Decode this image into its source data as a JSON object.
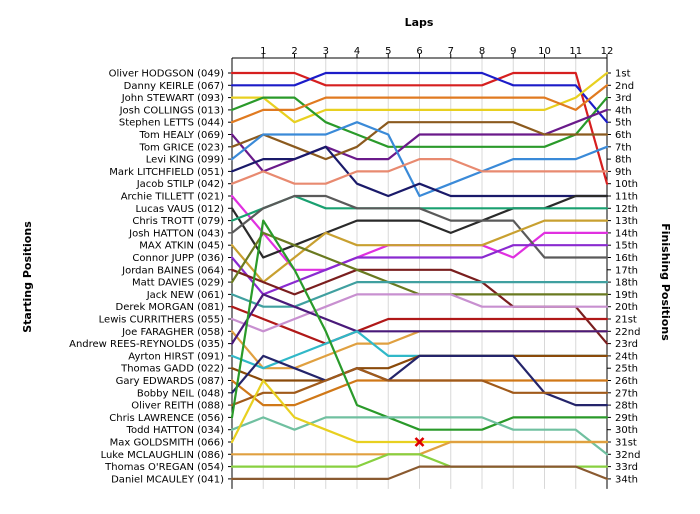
{
  "chart_data": {
    "type": "line",
    "title": "Laps",
    "ylabel_left": "Starting Positions",
    "ylabel_right": "Finishing Positions",
    "laps": [
      1,
      2,
      3,
      4,
      5,
      6,
      7,
      8,
      9,
      10,
      11,
      12
    ],
    "position_labels": [
      "1st",
      "2nd",
      "3rd",
      "4th",
      "5th",
      "6th",
      "7th",
      "8th",
      "9th",
      "10th",
      "11th",
      "12th",
      "13th",
      "14th",
      "15th",
      "16th",
      "17th",
      "18th",
      "19th",
      "20th",
      "21st",
      "22nd",
      "23rd",
      "24th",
      "25th",
      "26th",
      "27th",
      "28th",
      "29th",
      "30th",
      "31st",
      "32nd",
      "33rd",
      "34th"
    ],
    "annotation": {
      "type": "x-marker",
      "lap": 6,
      "position": 31,
      "color": "#dd0000"
    },
    "series": [
      {
        "name": "Oliver HODGSON (049)",
        "color": "#d61f1f",
        "positions": [
          1,
          1,
          1,
          2,
          2,
          2,
          2,
          2,
          2,
          1,
          1,
          1,
          10
        ]
      },
      {
        "name": "Danny KEIRLE (067)",
        "color": "#1c1cc8",
        "positions": [
          2,
          2,
          2,
          1,
          1,
          1,
          1,
          1,
          1,
          2,
          2,
          2,
          5
        ]
      },
      {
        "name": "John STEWART (093)",
        "color": "#e8d020",
        "positions": [
          3,
          3,
          5,
          4,
          4,
          4,
          4,
          4,
          4,
          4,
          4,
          3,
          1
        ]
      },
      {
        "name": "Josh COLLINGS (013)",
        "color": "#2a9a2a",
        "positions": [
          4,
          3,
          3,
          5,
          6,
          7,
          7,
          7,
          7,
          7,
          7,
          6,
          3
        ]
      },
      {
        "name": "Stephen LETTS (044)",
        "color": "#e07a20",
        "positions": [
          5,
          4,
          4,
          3,
          3,
          3,
          3,
          3,
          3,
          3,
          3,
          4,
          2
        ]
      },
      {
        "name": "Tom HEALY (069)",
        "color": "#6a1a8a",
        "positions": [
          6,
          9,
          8,
          7,
          8,
          8,
          6,
          6,
          6,
          6,
          6,
          5,
          4
        ]
      },
      {
        "name": "Tom GRICE (023)",
        "color": "#8b5a1e",
        "positions": [
          7,
          6,
          7,
          8,
          7,
          5,
          5,
          5,
          5,
          5,
          6,
          6,
          6
        ]
      },
      {
        "name": "Levi KING (099)",
        "color": "#3a8ad8",
        "positions": [
          8,
          6,
          6,
          6,
          5,
          6,
          11,
          10,
          9,
          8,
          8,
          8,
          7
        ]
      },
      {
        "name": "Mark LITCHFIELD (051)",
        "color": "#1a1a6a",
        "positions": [
          9,
          8,
          8,
          7,
          10,
          11,
          10,
          11,
          11,
          11,
          11,
          11,
          11
        ]
      },
      {
        "name": "Jacob STILP (042)",
        "color": "#e88a70",
        "positions": [
          10,
          9,
          10,
          10,
          9,
          9,
          8,
          8,
          9,
          9,
          9,
          9,
          9
        ]
      },
      {
        "name": "Archie TILLETT (021)",
        "color": "#e030e0",
        "positions": [
          11,
          14,
          17,
          17,
          16,
          15,
          15,
          15,
          15,
          16,
          14,
          14,
          14
        ]
      },
      {
        "name": "Lucas VAUS (012)",
        "color": "#2a2a2a",
        "positions": [
          12,
          16,
          15,
          14,
          13,
          13,
          13,
          14,
          13,
          12,
          12,
          11,
          11
        ]
      },
      {
        "name": "Chris TROTT (079)",
        "color": "#1aa070",
        "positions": [
          13,
          12,
          11,
          12,
          12,
          12,
          12,
          12,
          12,
          12,
          12,
          12,
          12
        ]
      },
      {
        "name": "Josh HATTON (043)",
        "color": "#5a5a5a",
        "positions": [
          14,
          12,
          11,
          11,
          12,
          12,
          12,
          13,
          13,
          13,
          16,
          16,
          16
        ]
      },
      {
        "name": "MAX ATKIN (045)",
        "color": "#c8a030",
        "positions": [
          15,
          18,
          16,
          14,
          15,
          15,
          15,
          15,
          15,
          14,
          13,
          13,
          13
        ]
      },
      {
        "name": "Connor JUPP (036)",
        "color": "#8a2ad0",
        "positions": [
          16,
          19,
          18,
          17,
          16,
          16,
          16,
          16,
          16,
          15,
          15,
          15,
          15
        ]
      },
      {
        "name": "Jordan BAINES (064)",
        "color": "#7a1e1e",
        "positions": [
          17,
          18,
          19,
          18,
          17,
          17,
          17,
          17,
          18,
          20,
          20,
          20,
          23
        ]
      },
      {
        "name": "Matt DAVIES (029)",
        "color": "#6a7a20",
        "positions": [
          18,
          14,
          15,
          16,
          17,
          18,
          19,
          19,
          19,
          19,
          19,
          19,
          19
        ]
      },
      {
        "name": "Jack NEW (061)",
        "color": "#40a0a0",
        "positions": [
          19,
          20,
          20,
          19,
          18,
          18,
          18,
          18,
          18,
          18,
          18,
          18,
          18
        ]
      },
      {
        "name": "Derek MORGAN (081)",
        "color": "#b01818",
        "positions": [
          20,
          21,
          22,
          23,
          22,
          21,
          21,
          21,
          21,
          21,
          21,
          21,
          21
        ]
      },
      {
        "name": "Lewis CURRITHERS (055)",
        "color": "#c890d0",
        "positions": [
          21,
          22,
          21,
          20,
          19,
          19,
          19,
          19,
          20,
          20,
          20,
          20,
          20
        ]
      },
      {
        "name": "Joe FARAGHER (058)",
        "color": "#e0a040",
        "positions": [
          22,
          25,
          25,
          24,
          23,
          23,
          22,
          22,
          22,
          22,
          22,
          22,
          22
        ]
      },
      {
        "name": "Andrew REES-REYNOLDS (035)",
        "color": "#4a1a7a",
        "positions": [
          23,
          19,
          20,
          21,
          22,
          22,
          22,
          22,
          22,
          22,
          22,
          22,
          22
        ]
      },
      {
        "name": "Ayrton HIRST (091)",
        "color": "#30b8c8",
        "positions": [
          24,
          25,
          24,
          23,
          22,
          24,
          24,
          24,
          24,
          24,
          24,
          24,
          24
        ]
      },
      {
        "name": "Thomas GADD (022)",
        "color": "#8a4a0a",
        "positions": [
          25,
          26,
          26,
          26,
          25,
          25,
          24,
          24,
          24,
          24,
          24,
          24,
          24
        ]
      },
      {
        "name": "Gary EDWARDS (087)",
        "color": "#d07818",
        "positions": [
          26,
          28,
          28,
          27,
          26,
          26,
          26,
          26,
          26,
          26,
          26,
          26,
          26
        ]
      },
      {
        "name": "Bobby NEIL (048)",
        "color": "#24246a",
        "positions": [
          27,
          24,
          25,
          26,
          25,
          26,
          24,
          24,
          24,
          24,
          27,
          28,
          28
        ]
      },
      {
        "name": "Oliver REITH (088)",
        "color": "#a05a1a",
        "positions": [
          28,
          27,
          27,
          26,
          25,
          26,
          26,
          26,
          26,
          27,
          27,
          27,
          27
        ]
      },
      {
        "name": "Chris LAWRENCE (056)",
        "color": "#2a9a2a",
        "positions": [
          29,
          13,
          17,
          22,
          28,
          29,
          30,
          30,
          30,
          29,
          29,
          29,
          29
        ]
      },
      {
        "name": "Todd HATTON (034)",
        "color": "#70c0a0",
        "positions": [
          30,
          29,
          30,
          29,
          29,
          29,
          29,
          29,
          29,
          30,
          30,
          30,
          32
        ]
      },
      {
        "name": "Max GOLDSMITH (066)",
        "color": "#e8d020",
        "positions": [
          31,
          26,
          29,
          30,
          31,
          31,
          31,
          31,
          31,
          31,
          31,
          31,
          31
        ]
      },
      {
        "name": "Luke MCLAUGHLIN (086)",
        "color": "#e0a040",
        "positions": [
          32,
          32,
          32,
          32,
          32,
          32,
          32,
          31,
          31,
          31,
          31,
          31,
          31
        ]
      },
      {
        "name": "Thomas O'REGAN (054)",
        "color": "#88d040",
        "positions": [
          33,
          33,
          33,
          33,
          33,
          32,
          32,
          33,
          33,
          33,
          33,
          33,
          33
        ]
      },
      {
        "name": "Daniel MCAULEY (041)",
        "color": "#8a5a30",
        "positions": [
          34,
          34,
          34,
          34,
          34,
          34,
          33,
          33,
          33,
          33,
          33,
          33,
          34
        ]
      }
    ]
  }
}
